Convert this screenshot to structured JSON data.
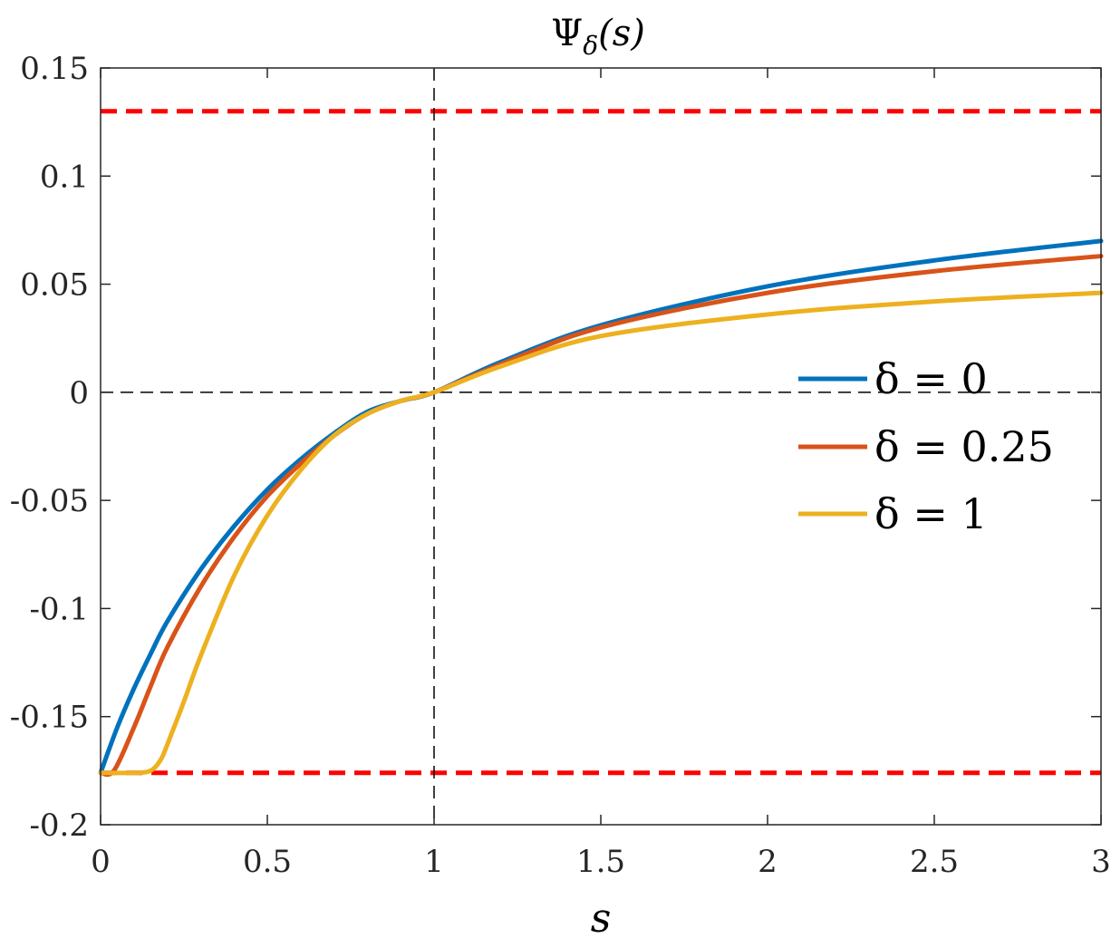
{
  "chart_data": {
    "type": "line",
    "title": "Ψδ(s)",
    "title_main": "Ψ",
    "title_sub": "δ",
    "title_args": "(s)",
    "xlabel": "s",
    "ylabel": "",
    "xlim": [
      0,
      3
    ],
    "ylim": [
      -0.2,
      0.15
    ],
    "xticks": [
      0,
      0.5,
      1,
      1.5,
      2,
      2.5,
      3
    ],
    "yticks": [
      -0.2,
      -0.15,
      -0.1,
      -0.05,
      0,
      0.05,
      0.1,
      0.15
    ],
    "xtick_labels": [
      "0",
      "0.5",
      "1",
      "1.5",
      "2",
      "2.5",
      "3"
    ],
    "ytick_labels": [
      "-0.2",
      "-0.15",
      "-0.1",
      "-0.05",
      "0",
      "0.05",
      "0.1",
      "0.15"
    ],
    "grid": false,
    "legend_position": "right",
    "reference_lines": [
      {
        "kind": "horizontal",
        "y": 0.13,
        "color": "#ff0000",
        "style": "dashed"
      },
      {
        "kind": "horizontal",
        "y": -0.176,
        "color": "#ff0000",
        "style": "dashed"
      },
      {
        "kind": "horizontal",
        "y": 0,
        "color": "#000000",
        "style": "dashed-thin"
      },
      {
        "kind": "vertical",
        "x": 1,
        "color": "#000000",
        "style": "dashed-thin"
      }
    ],
    "series": [
      {
        "name": "δ = 0",
        "color": "#0072bd",
        "x": [
          0,
          0.05,
          0.1,
          0.15,
          0.2,
          0.3,
          0.4,
          0.5,
          0.6,
          0.7,
          0.8,
          0.9,
          1.0,
          1.2,
          1.5,
          2.0,
          2.5,
          3.0
        ],
        "y": [
          -0.176,
          -0.155,
          -0.137,
          -0.121,
          -0.106,
          -0.082,
          -0.062,
          -0.045,
          -0.031,
          -0.019,
          -0.009,
          -0.004,
          0,
          0.014,
          0.031,
          0.049,
          0.061,
          0.07
        ]
      },
      {
        "name": "δ = 0.25",
        "color": "#d95319",
        "x": [
          0,
          0.04,
          0.1,
          0.15,
          0.2,
          0.3,
          0.4,
          0.5,
          0.6,
          0.7,
          0.8,
          0.9,
          1.0,
          1.2,
          1.5,
          2.0,
          2.5,
          3.0
        ],
        "y": [
          -0.176,
          -0.175,
          -0.155,
          -0.136,
          -0.118,
          -0.09,
          -0.067,
          -0.048,
          -0.033,
          -0.02,
          -0.01,
          -0.004,
          0,
          0.013,
          0.03,
          0.046,
          0.056,
          0.063
        ]
      },
      {
        "name": "δ = 1",
        "color": "#edb120",
        "x": [
          0,
          0.1,
          0.15,
          0.18,
          0.2,
          0.25,
          0.3,
          0.4,
          0.5,
          0.6,
          0.7,
          0.8,
          0.9,
          1.0,
          1.2,
          1.5,
          2.0,
          2.5,
          3.0
        ],
        "y": [
          -0.176,
          -0.176,
          -0.175,
          -0.17,
          -0.163,
          -0.143,
          -0.122,
          -0.085,
          -0.057,
          -0.036,
          -0.02,
          -0.01,
          -0.004,
          0,
          0.012,
          0.026,
          0.036,
          0.042,
          0.046
        ]
      }
    ]
  }
}
